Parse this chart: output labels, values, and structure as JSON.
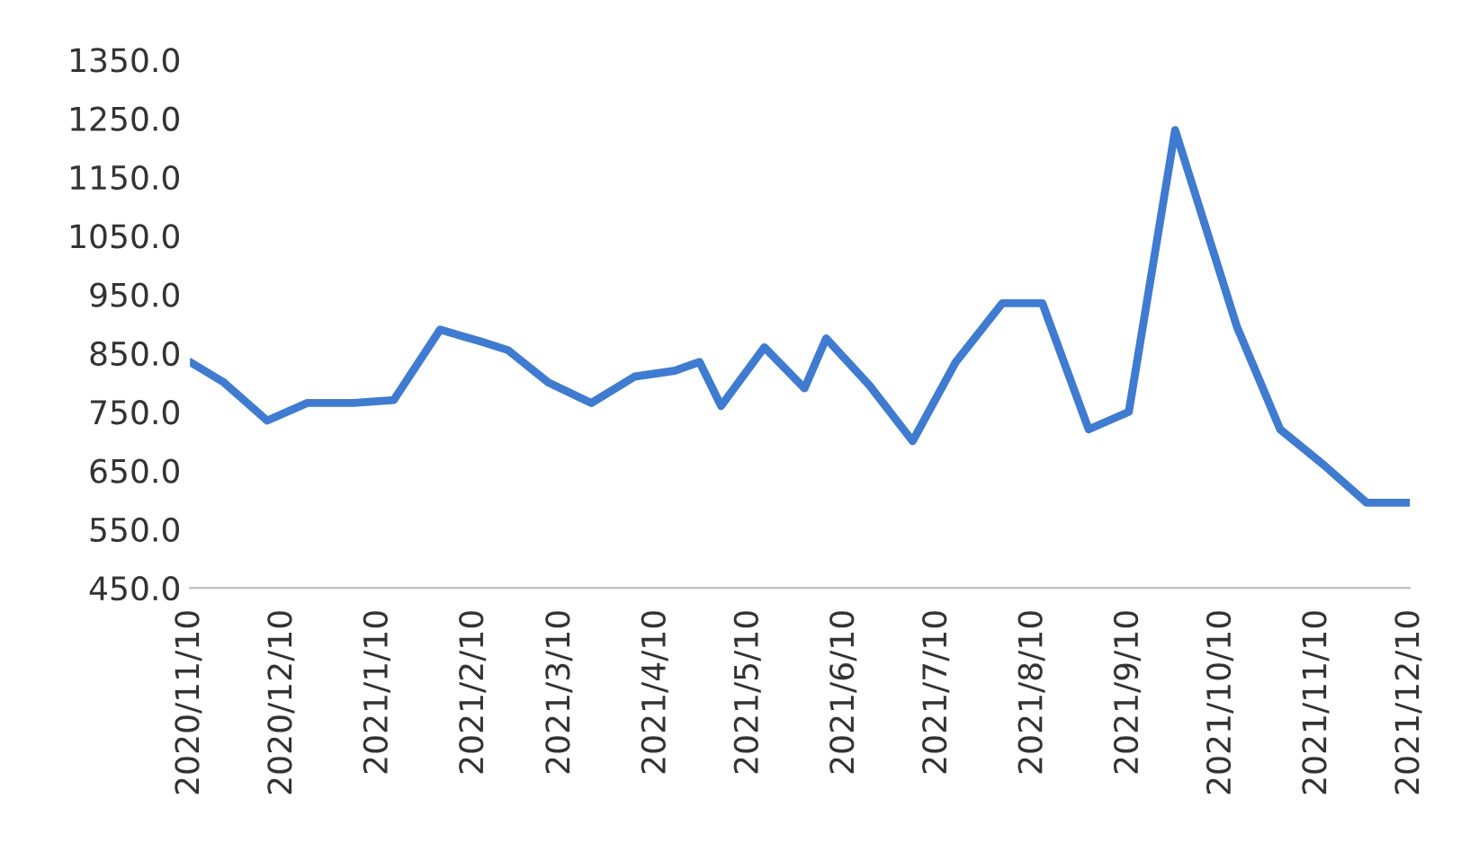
{
  "chart_data": {
    "type": "line",
    "x": [
      "2020-11-10",
      "2020-11-21",
      "2020-12-05",
      "2020-12-18",
      "2021-01-02",
      "2021-01-15",
      "2021-01-30",
      "2021-02-12",
      "2021-02-21",
      "2021-03-06",
      "2021-03-20",
      "2021-04-03",
      "2021-04-16",
      "2021-04-24",
      "2021-05-01",
      "2021-05-15",
      "2021-05-28",
      "2021-06-04",
      "2021-06-18",
      "2021-07-02",
      "2021-07-16",
      "2021-07-31",
      "2021-08-13",
      "2021-08-28",
      "2021-09-10",
      "2021-09-25",
      "2021-10-15",
      "2021-10-29",
      "2021-11-12",
      "2021-11-26",
      "2021-12-10"
    ],
    "series": [
      {
        "color": "#3f7bd0",
        "values": [
          835,
          800,
          735,
          765,
          765,
          770,
          890,
          870,
          855,
          800,
          765,
          810,
          820,
          835,
          760,
          860,
          790,
          875,
          795,
          700,
          835,
          935,
          935,
          720,
          750,
          1230,
          895,
          720,
          660,
          595,
          595
        ]
      }
    ],
    "xlim": [
      "2020-11-10",
      "2021-12-10"
    ],
    "xticks": [
      {
        "value": "2020-11-10",
        "label": "2020/11/10"
      },
      {
        "value": "2020-12-10",
        "label": "2020/12/10"
      },
      {
        "value": "2021-01-10",
        "label": "2021/1/10"
      },
      {
        "value": "2021-02-10",
        "label": "2021/2/10"
      },
      {
        "value": "2021-03-10",
        "label": "2021/3/10"
      },
      {
        "value": "2021-04-10",
        "label": "2021/4/10"
      },
      {
        "value": "2021-05-10",
        "label": "2021/5/10"
      },
      {
        "value": "2021-06-10",
        "label": "2021/6/10"
      },
      {
        "value": "2021-07-10",
        "label": "2021/7/10"
      },
      {
        "value": "2021-08-10",
        "label": "2021/8/10"
      },
      {
        "value": "2021-09-10",
        "label": "2021/9/10"
      },
      {
        "value": "2021-10-10",
        "label": "2021/10/10"
      },
      {
        "value": "2021-11-10",
        "label": "2021/11/10"
      },
      {
        "value": "2021-12-10",
        "label": "2021/12/10"
      }
    ],
    "ylim": [
      450,
      1350
    ],
    "yticks": [
      {
        "value": 450,
        "label": "450.0"
      },
      {
        "value": 550,
        "label": "550.0"
      },
      {
        "value": 650,
        "label": "650.0"
      },
      {
        "value": 750,
        "label": "750.0"
      },
      {
        "value": 850,
        "label": "850.0"
      },
      {
        "value": 950,
        "label": "950.0"
      },
      {
        "value": 1050,
        "label": "1050.0"
      },
      {
        "value": 1150,
        "label": "1150.0"
      },
      {
        "value": 1250,
        "label": "1250.0"
      },
      {
        "value": 1350,
        "label": "1350.0"
      }
    ],
    "grid": false,
    "legend": false,
    "marker": "none",
    "line_style": "solid"
  }
}
